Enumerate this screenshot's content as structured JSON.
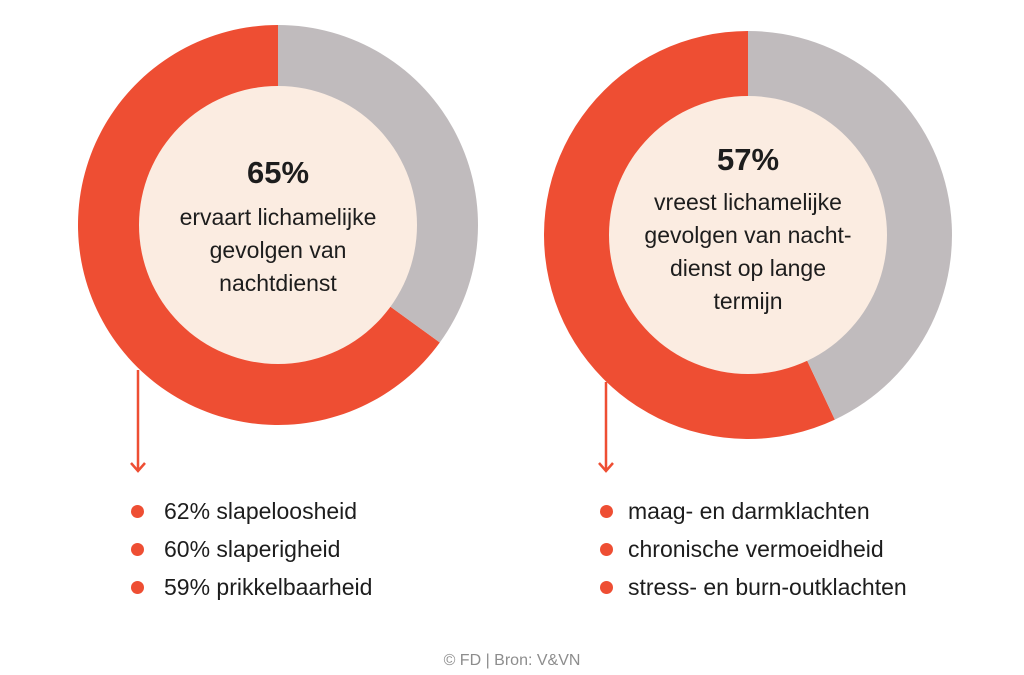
{
  "colors": {
    "accent": "#ee4e33",
    "remainder": "#c0bbbd",
    "center_fill": "#fbece1",
    "text": "#1d1d1d",
    "source_text": "#8d8d8d"
  },
  "chart_data": [
    {
      "type": "pie",
      "variant": "donut",
      "slices": [
        {
          "value": 65,
          "color": "#ee4e33"
        },
        {
          "value": 35,
          "color": "#c0bbbd"
        }
      ],
      "center_value": "65%",
      "center_text": [
        "ervaart lichamelijke",
        "gevolgen van",
        "nachtdienst"
      ],
      "items": [
        "62% slapeloosheid",
        "60% slaperigheid",
        "59% prikkelbaarheid"
      ]
    },
    {
      "type": "pie",
      "variant": "donut",
      "slices": [
        {
          "value": 57,
          "color": "#ee4e33"
        },
        {
          "value": 43,
          "color": "#c0bbbd"
        }
      ],
      "center_value": "57%",
      "center_text": [
        "vreest lichamelijke",
        "gevolgen van nacht-",
        "dienst op lange",
        "termijn"
      ],
      "items": [
        "maag- en darmklachten",
        "chronische vermoeidheid",
        "stress- en burn-outklachten"
      ]
    }
  ],
  "source": "© FD | Bron: V&VN"
}
